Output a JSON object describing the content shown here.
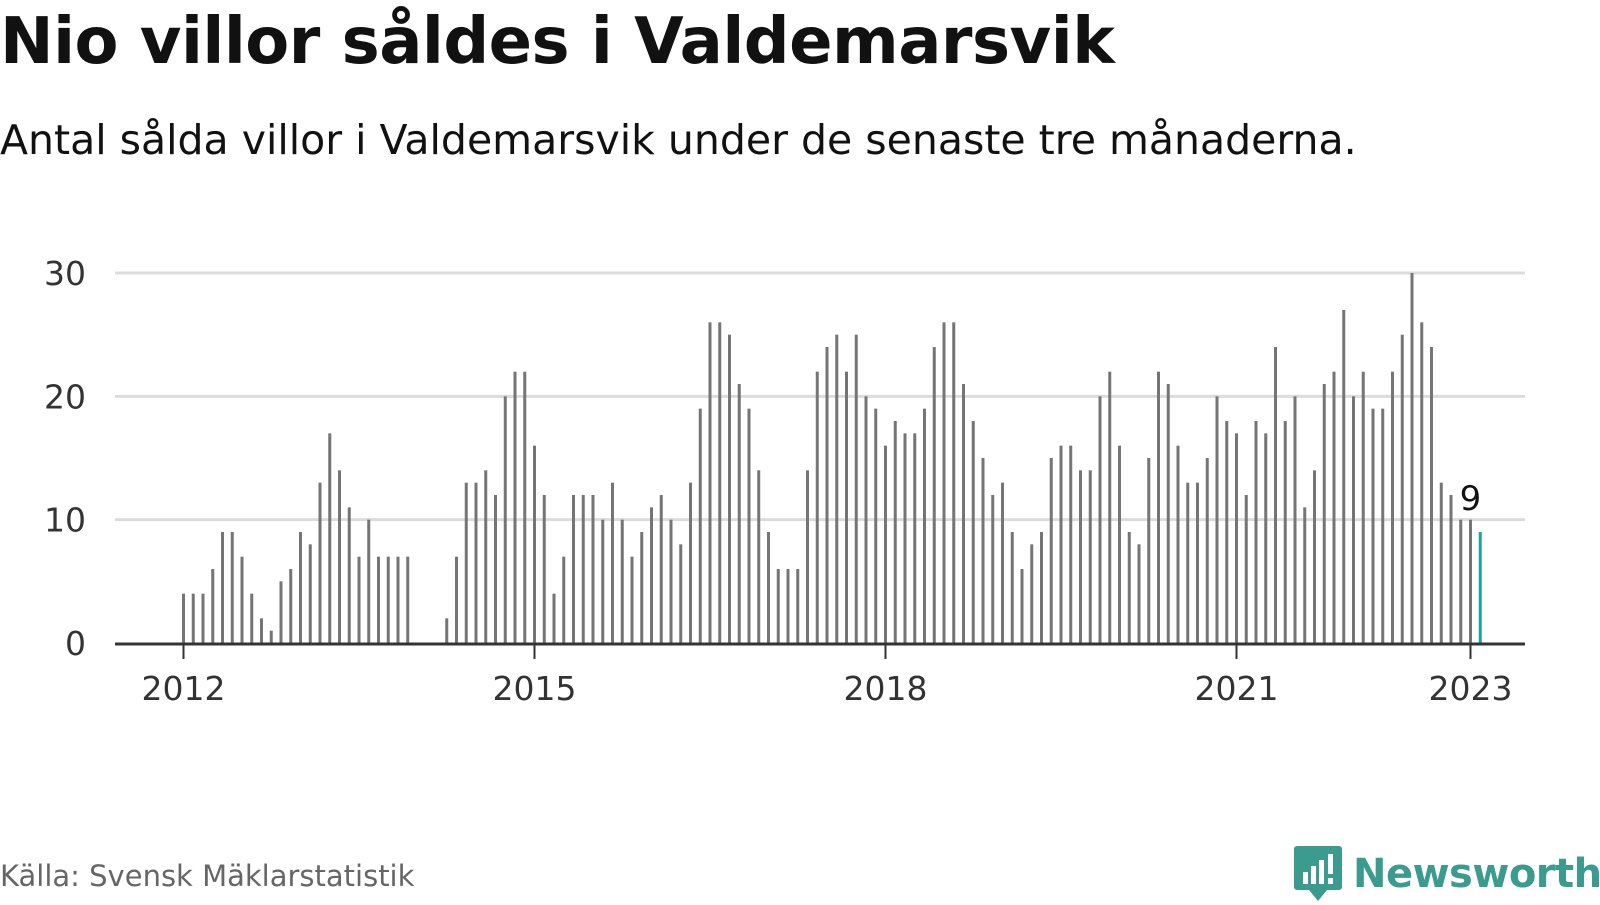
{
  "header": {
    "title": "Nio villor såldes i Valdemarsvik",
    "subtitle": "Antal sålda villor i Valdemarsvik under de senaste tre månaderna."
  },
  "footer": {
    "source": "Källa: Svensk Mäklarstatistik",
    "brand": "Newsworthy",
    "brand_icon": "bar-chart-speech-bubble-icon"
  },
  "colors": {
    "bar": "#757575",
    "highlight": "#1aa59a",
    "grid": "#dcdcdc",
    "axis": "#333333",
    "brand": "#3a9b8e"
  },
  "chart_data": {
    "type": "bar",
    "title": "Nio villor såldes i Valdemarsvik",
    "subtitle": "Antal sålda villor i Valdemarsvik under de senaste tre månaderna.",
    "xlabel": "",
    "ylabel": "",
    "ylim": [
      0,
      30
    ],
    "yticks": [
      "0",
      "10",
      "20",
      "30"
    ],
    "xticks": [
      {
        "label": "2012",
        "date": "2012-01"
      },
      {
        "label": "2015",
        "date": "2015-01"
      },
      {
        "label": "2018",
        "date": "2018-01"
      },
      {
        "label": "2021",
        "date": "2021-01"
      },
      {
        "label": "2023",
        "date": "2023-01"
      }
    ],
    "grid": true,
    "start_month": "2012-01",
    "values": [
      4,
      4,
      4,
      6,
      9,
      9,
      7,
      4,
      2,
      1,
      5,
      6,
      9,
      8,
      13,
      17,
      14,
      11,
      7,
      10,
      7,
      7,
      7,
      7,
      null,
      null,
      0,
      2,
      7,
      13,
      13,
      14,
      12,
      20,
      22,
      22,
      16,
      12,
      4,
      7,
      12,
      12,
      12,
      10,
      13,
      10,
      7,
      9,
      11,
      12,
      10,
      8,
      13,
      19,
      26,
      26,
      25,
      21,
      19,
      14,
      9,
      6,
      6,
      6,
      14,
      22,
      24,
      25,
      22,
      25,
      20,
      19,
      16,
      18,
      17,
      17,
      19,
      24,
      26,
      26,
      21,
      18,
      15,
      12,
      13,
      9,
      6,
      8,
      9,
      15,
      16,
      16,
      14,
      14,
      20,
      22,
      16,
      9,
      8,
      15,
      22,
      21,
      16,
      13,
      13,
      15,
      20,
      18,
      17,
      12,
      18,
      17,
      24,
      18,
      20,
      11,
      14,
      21,
      22,
      27,
      20,
      22,
      19,
      19,
      22,
      25,
      30,
      26,
      24,
      13,
      12,
      10,
      10,
      9
    ],
    "highlight_last": true,
    "annotation": {
      "text": "9",
      "date": "2023-01",
      "value": 9
    }
  }
}
